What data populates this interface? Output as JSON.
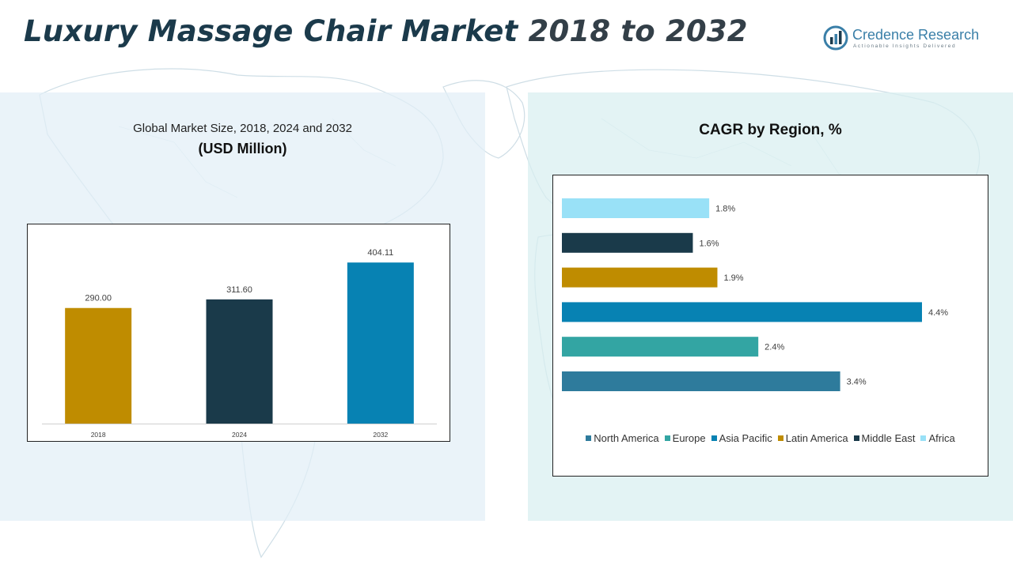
{
  "header": {
    "title_part1": "Luxury Massage Chair Market",
    "title_part2": "2018 to 2032"
  },
  "logo": {
    "name": "Credence Research",
    "tagline": "Actionable Insights Delivered"
  },
  "left_panel": {
    "subtitle": "Global Market Size, 2018, 2024 and 2032",
    "unit": "(USD Million)"
  },
  "right_panel": {
    "title": "CAGR by Region, %"
  },
  "colors": {
    "gold": "#bf8c00",
    "navy": "#1a3a4a",
    "blue": "#0782b3",
    "teal": "#33a5a3",
    "steel": "#2e7b9c",
    "light": "#99e1f7"
  },
  "chart_data": [
    {
      "type": "bar",
      "categories": [
        "2018",
        "2024",
        "2032"
      ],
      "values": [
        290.0,
        311.6,
        404.11
      ],
      "value_labels": [
        "290.00",
        "311.60",
        "404.11"
      ],
      "colors": [
        "#bf8c00",
        "#1a3a4a",
        "#0782b3"
      ],
      "title": "Global Market Size, 2018, 2024 and 2032",
      "ylabel": "",
      "ylim": [
        0,
        460
      ],
      "grid": false
    },
    {
      "type": "bar",
      "orientation": "horizontal",
      "categories": [
        "North America",
        "Europe",
        "Asia Pacific",
        "Latin America",
        "Middle East",
        "Africa"
      ],
      "values": [
        3.4,
        2.4,
        4.4,
        1.9,
        1.6,
        1.8
      ],
      "value_labels": [
        "3.4%",
        "2.4%",
        "4.4%",
        "1.9%",
        "1.6%",
        "1.8%"
      ],
      "colors": [
        "#2e7b9c",
        "#33a5a3",
        "#0782b3",
        "#bf8c00",
        "#1a3a4a",
        "#99e1f7"
      ],
      "title": "CAGR by Region, %",
      "xlim": [
        0,
        4.4
      ],
      "grid": false,
      "legend": "bottom"
    }
  ]
}
